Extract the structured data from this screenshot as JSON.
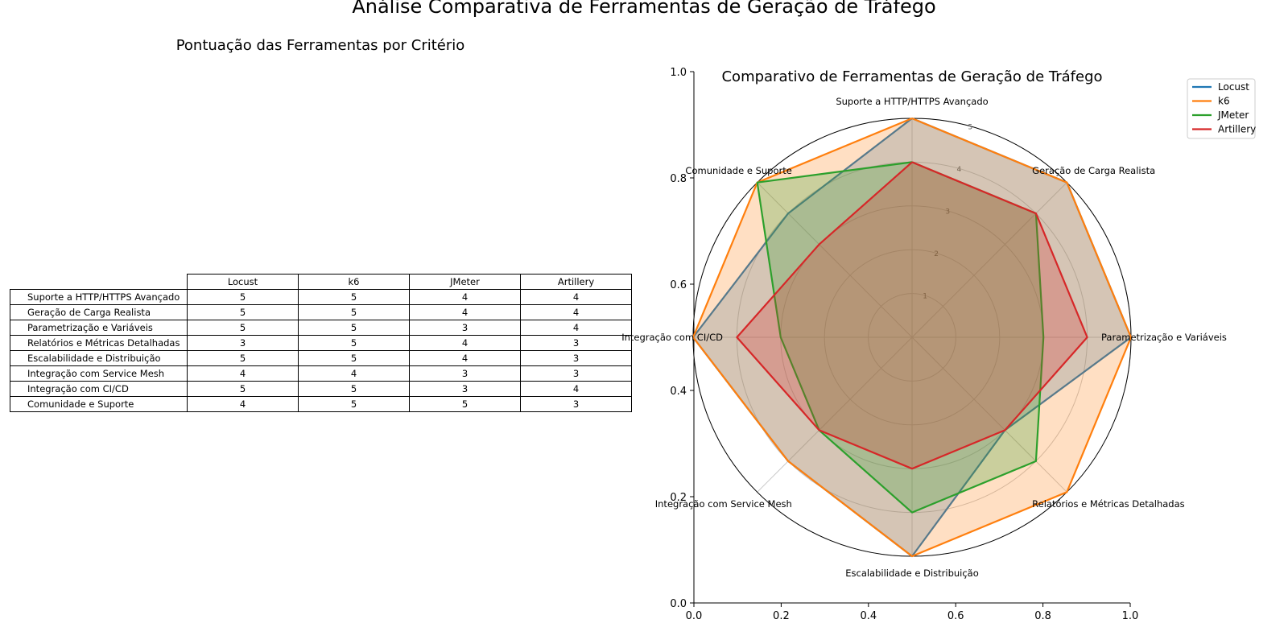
{
  "figure": {
    "title": "Análise Comparativa de Ferramentas de Geração de Tráfego"
  },
  "table": {
    "title": "Pontuação das Ferramentas por Critério",
    "columns": [
      "Locust",
      "k6",
      "JMeter",
      "Artillery"
    ],
    "rows": [
      {
        "label": "Suporte a HTTP/HTTPS Avançado",
        "values": [
          "5",
          "5",
          "4",
          "4"
        ]
      },
      {
        "label": "Geração de Carga Realista",
        "values": [
          "5",
          "5",
          "4",
          "4"
        ]
      },
      {
        "label": "Parametrização e Variáveis",
        "values": [
          "5",
          "5",
          "3",
          "4"
        ]
      },
      {
        "label": "Relatórios e Métricas Detalhadas",
        "values": [
          "3",
          "5",
          "4",
          "3"
        ]
      },
      {
        "label": "Escalabilidade e Distribuição",
        "values": [
          "5",
          "5",
          "4",
          "3"
        ]
      },
      {
        "label": "Integração com Service Mesh",
        "values": [
          "4",
          "4",
          "3",
          "3"
        ]
      },
      {
        "label": "Integração com CI/CD",
        "values": [
          "5",
          "5",
          "3",
          "4"
        ]
      },
      {
        "label": "Comunidade e Suporte",
        "values": [
          "4",
          "5",
          "5",
          "3"
        ]
      }
    ]
  },
  "chart_data": {
    "type": "radar",
    "title": "Comparativo de Ferramentas de Geração de Tráfego",
    "categories": [
      "Suporte a HTTP/HTTPS Avançado",
      "Geração de Carga Realista",
      "Parametrização e Variáveis",
      "Relatórios e Métricas Detalhadas",
      "Escalabilidade e Distribuição",
      "Integração com Service Mesh",
      "Integração com CI/CD",
      "Comunidade e Suporte"
    ],
    "series": [
      {
        "name": "Locust",
        "color": "#1f77b4",
        "values": [
          5,
          5,
          5,
          3,
          5,
          4,
          5,
          4
        ]
      },
      {
        "name": "k6",
        "color": "#ff7f0e",
        "values": [
          5,
          5,
          5,
          5,
          5,
          4,
          5,
          5
        ]
      },
      {
        "name": "JMeter",
        "color": "#2ca02c",
        "values": [
          4,
          4,
          3,
          4,
          4,
          3,
          3,
          5
        ]
      },
      {
        "name": "Artillery",
        "color": "#d62728",
        "values": [
          4,
          4,
          4,
          3,
          3,
          3,
          4,
          3
        ]
      }
    ],
    "rlim": [
      0,
      5
    ],
    "r_ticks": [
      "1",
      "2",
      "3",
      "4",
      "5"
    ],
    "cartesian_ticks": {
      "x": [
        "0.0",
        "0.2",
        "0.4",
        "0.6",
        "0.8",
        "1.0"
      ],
      "y": [
        "0.0",
        "0.2",
        "0.4",
        "0.6",
        "0.8",
        "1.0"
      ]
    },
    "legend_position": "top-right",
    "grid": true
  }
}
